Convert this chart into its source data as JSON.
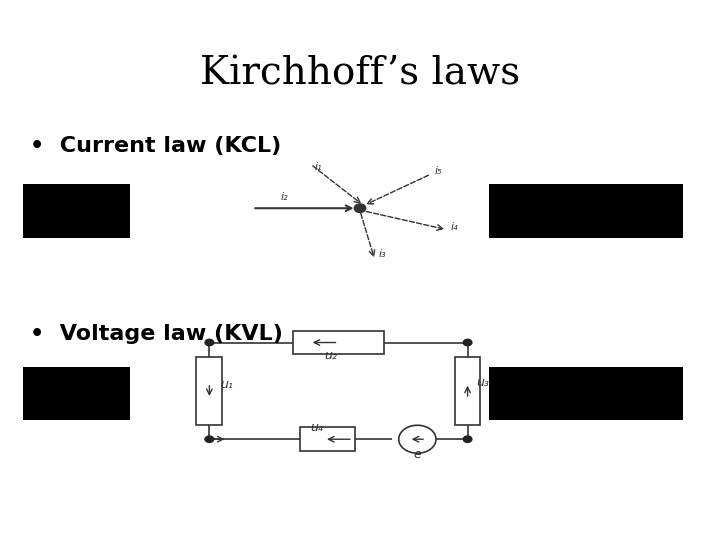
{
  "title": "Kirchhoff’s laws",
  "title_fontsize": 28,
  "bullet1": "Current law (KCL)",
  "bullet2": "Voltage law (KVL)",
  "bullet_fontsize": 16,
  "bg_color": "#ffffff",
  "diagram_color": "#333333",
  "black_rect_color": "#000000"
}
